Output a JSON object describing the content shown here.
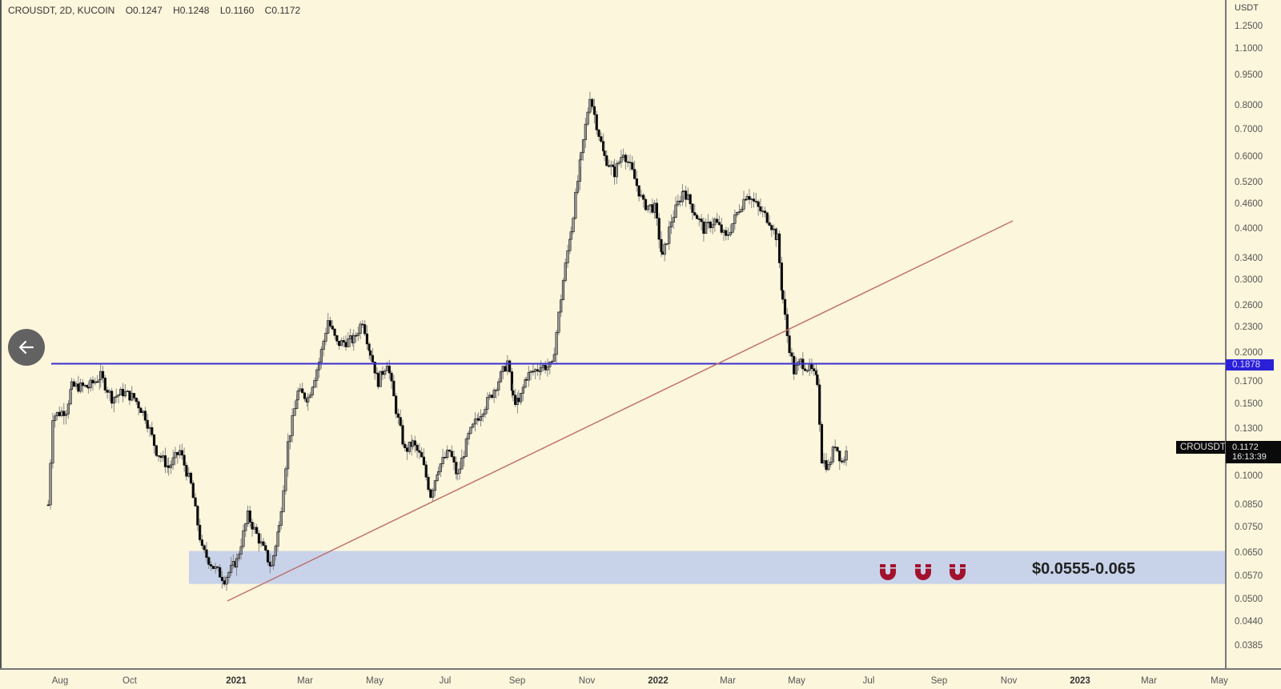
{
  "chart_data": {
    "type": "candlestick",
    "title": "CROUSDT, 2D, KUCOIN",
    "symbol": "CROUSDT",
    "interval": "2D",
    "exchange": "KUCOIN",
    "ohlc_last": {
      "open": "O0.1247",
      "high": "H0.1248",
      "low": "L0.1160",
      "close": "C0.1172"
    },
    "yscale": "log",
    "ylabel": "USDT",
    "ylim": [
      0.0385,
      1.25
    ],
    "y_ticks": [
      "1.2500",
      "1.1000",
      "0.9500",
      "0.8000",
      "0.7000",
      "0.6000",
      "0.5200",
      "0.4600",
      "0.4000",
      "0.3400",
      "0.3000",
      "0.2600",
      "0.2300",
      "0.2000",
      "0.1700",
      "0.1500",
      "0.1300",
      "0.1000",
      "0.0850",
      "0.0750",
      "0.0650",
      "0.0570",
      "0.0500",
      "0.0440",
      "0.0385"
    ],
    "x_ticks": [
      {
        "label": "Aug",
        "bold": false
      },
      {
        "label": "Oct",
        "bold": false
      },
      {
        "label": "2021",
        "bold": true
      },
      {
        "label": "Mar",
        "bold": false
      },
      {
        "label": "May",
        "bold": false
      },
      {
        "label": "Jul",
        "bold": false
      },
      {
        "label": "Sep",
        "bold": false
      },
      {
        "label": "Nov",
        "bold": false
      },
      {
        "label": "2022",
        "bold": true
      },
      {
        "label": "Mar",
        "bold": false
      },
      {
        "label": "May",
        "bold": false
      },
      {
        "label": "Jul",
        "bold": false
      },
      {
        "label": "Sep",
        "bold": false
      },
      {
        "label": "Nov",
        "bold": false
      },
      {
        "label": "2023",
        "bold": true
      },
      {
        "label": "Mar",
        "bold": false
      },
      {
        "label": "May",
        "bold": false
      }
    ],
    "price_path": [
      [
        "2020-07-20",
        0.085
      ],
      [
        "2020-07-24",
        0.14
      ],
      [
        "2020-08-05",
        0.145
      ],
      [
        "2020-08-10",
        0.165
      ],
      [
        "2020-08-25",
        0.165
      ],
      [
        "2020-09-05",
        0.175
      ],
      [
        "2020-09-15",
        0.155
      ],
      [
        "2020-09-25",
        0.16
      ],
      [
        "2020-10-05",
        0.155
      ],
      [
        "2020-10-15",
        0.14
      ],
      [
        "2020-10-25",
        0.115
      ],
      [
        "2020-11-05",
        0.105
      ],
      [
        "2020-11-15",
        0.115
      ],
      [
        "2020-11-25",
        0.095
      ],
      [
        "2020-12-05",
        0.066
      ],
      [
        "2020-12-15",
        0.06
      ],
      [
        "2020-12-25",
        0.056
      ],
      [
        "2021-01-05",
        0.062
      ],
      [
        "2021-01-15",
        0.08
      ],
      [
        "2021-01-25",
        0.07
      ],
      [
        "2021-02-05",
        0.06
      ],
      [
        "2021-02-12",
        0.075
      ],
      [
        "2021-02-20",
        0.12
      ],
      [
        "2021-03-01",
        0.16
      ],
      [
        "2021-03-10",
        0.155
      ],
      [
        "2021-03-20",
        0.19
      ],
      [
        "2021-03-28",
        0.24
      ],
      [
        "2021-04-05",
        0.21
      ],
      [
        "2021-04-20",
        0.215
      ],
      [
        "2021-04-28",
        0.24
      ],
      [
        "2021-05-05",
        0.2
      ],
      [
        "2021-05-12",
        0.17
      ],
      [
        "2021-05-20",
        0.19
      ],
      [
        "2021-05-28",
        0.145
      ],
      [
        "2021-06-05",
        0.115
      ],
      [
        "2021-06-12",
        0.12
      ],
      [
        "2021-06-20",
        0.11
      ],
      [
        "2021-06-28",
        0.09
      ],
      [
        "2021-07-05",
        0.105
      ],
      [
        "2021-07-15",
        0.115
      ],
      [
        "2021-07-22",
        0.1
      ],
      [
        "2021-08-01",
        0.125
      ],
      [
        "2021-08-10",
        0.14
      ],
      [
        "2021-08-20",
        0.155
      ],
      [
        "2021-09-01",
        0.18
      ],
      [
        "2021-09-05",
        0.19
      ],
      [
        "2021-09-10",
        0.155
      ],
      [
        "2021-09-15",
        0.15
      ],
      [
        "2021-09-22",
        0.175
      ],
      [
        "2021-10-05",
        0.185
      ],
      [
        "2021-10-15",
        0.185
      ],
      [
        "2021-10-25",
        0.3
      ],
      [
        "2021-11-01",
        0.4
      ],
      [
        "2021-11-10",
        0.6
      ],
      [
        "2021-11-18",
        0.85
      ],
      [
        "2021-11-24",
        0.72
      ],
      [
        "2021-12-01",
        0.6
      ],
      [
        "2021-12-10",
        0.55
      ],
      [
        "2021-12-18",
        0.62
      ],
      [
        "2021-12-26",
        0.55
      ],
      [
        "2022-01-05",
        0.46
      ],
      [
        "2022-01-15",
        0.45
      ],
      [
        "2022-01-22",
        0.34
      ],
      [
        "2022-01-30",
        0.42
      ],
      [
        "2022-02-10",
        0.5
      ],
      [
        "2022-02-18",
        0.45
      ],
      [
        "2022-02-28",
        0.4
      ],
      [
        "2022-03-10",
        0.42
      ],
      [
        "2022-03-20",
        0.38
      ],
      [
        "2022-04-01",
        0.45
      ],
      [
        "2022-04-08",
        0.49
      ],
      [
        "2022-04-18",
        0.45
      ],
      [
        "2022-04-28",
        0.42
      ],
      [
        "2022-05-05",
        0.38
      ],
      [
        "2022-05-10",
        0.27
      ],
      [
        "2022-05-14",
        0.22
      ],
      [
        "2022-05-20",
        0.18
      ],
      [
        "2022-05-26",
        0.19
      ],
      [
        "2022-06-05",
        0.18
      ],
      [
        "2022-06-10",
        0.17
      ],
      [
        "2022-06-14",
        0.11
      ],
      [
        "2022-06-20",
        0.105
      ],
      [
        "2022-06-26",
        0.12
      ],
      [
        "2022-07-02",
        0.108
      ],
      [
        "2022-07-08",
        0.1172
      ]
    ],
    "annotations": {
      "horizontal_line": {
        "price": 0.1878,
        "label": "0.1878",
        "color": "#3a2fd0"
      },
      "trendline": {
        "from_date": "2020-12-25",
        "from_price": 0.053,
        "to_date": "2022-11-01",
        "to_price": 0.43,
        "color": "#c0706a"
      },
      "support_zone": {
        "low": 0.0555,
        "high": 0.065,
        "label": "$0.0555-0.065",
        "color": "#c8d3ea"
      },
      "magnet_count": 3,
      "magnet_color": "#a3122d"
    },
    "last_price": {
      "value": "0.1172",
      "countdown": "16:13:39"
    }
  },
  "ui": {
    "back_button_icon": "arrow-left-icon",
    "colors": {
      "background": "#fcf6dc",
      "candle_body": "#0a0a0a",
      "wick": "#888888"
    }
  }
}
